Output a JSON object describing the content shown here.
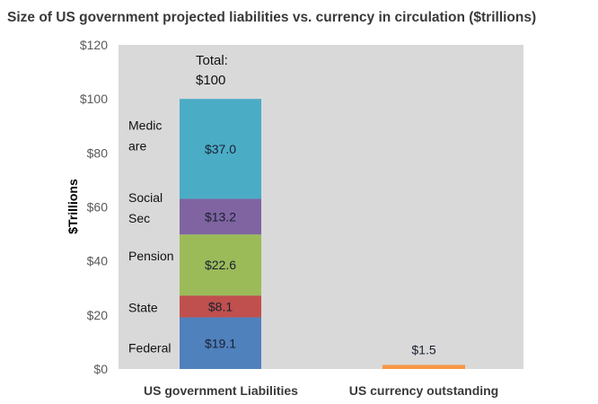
{
  "chart_data": {
    "type": "bar",
    "stacked": true,
    "title": "Size of US government projected liabilities vs. currency in circulation ($trillions)",
    "ylabel": "$Trillions",
    "ylim": [
      0,
      120
    ],
    "yticks": [
      0,
      20,
      40,
      60,
      80,
      100,
      120
    ],
    "ytick_labels": [
      "$0",
      "$20",
      "$40",
      "$60",
      "$80",
      "$100",
      "$120"
    ],
    "grid": false,
    "categories": [
      "US government Liabilities",
      "US currency outstanding"
    ],
    "series": [
      {
        "name": "Federal",
        "name_lines": [
          "Federal"
        ],
        "color": "#4f81bd",
        "values": [
          19.1,
          0
        ],
        "labels": [
          "$19.1",
          ""
        ]
      },
      {
        "name": "State",
        "name_lines": [
          "State"
        ],
        "color": "#c0504d",
        "values": [
          8.1,
          0
        ],
        "labels": [
          "$8.1",
          ""
        ]
      },
      {
        "name": "Pension",
        "name_lines": [
          "Pension"
        ],
        "color": "#9bbb59",
        "values": [
          22.6,
          0
        ],
        "labels": [
          "$22.6",
          ""
        ]
      },
      {
        "name": "Social Sec",
        "name_lines": [
          "Social",
          "Sec"
        ],
        "color": "#8064a2",
        "values": [
          13.2,
          0
        ],
        "labels": [
          "$13.2",
          ""
        ]
      },
      {
        "name": "Medicare",
        "name_lines": [
          "Medic",
          "are"
        ],
        "color": "#4bacc6",
        "values": [
          37.0,
          0
        ],
        "labels": [
          "$37.0",
          ""
        ]
      },
      {
        "name": "Currency",
        "color": "#f79646",
        "values": [
          0,
          1.5
        ],
        "labels": [
          "",
          "$1.5"
        ]
      }
    ],
    "total_label_lines": [
      "Total:",
      "$100"
    ]
  }
}
